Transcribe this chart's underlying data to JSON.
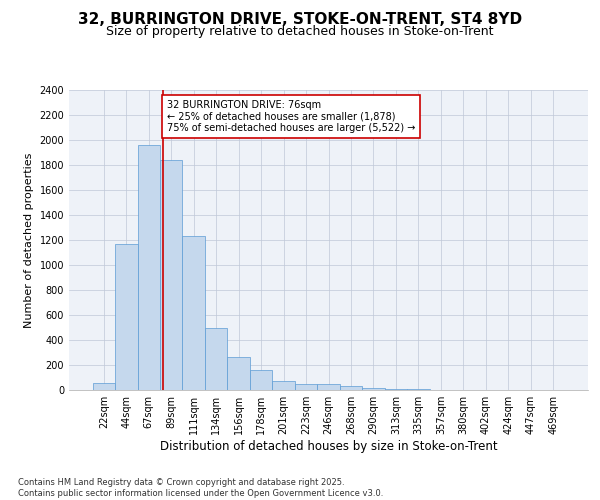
{
  "title_line1": "32, BURRINGTON DRIVE, STOKE-ON-TRENT, ST4 8YD",
  "title_line2": "Size of property relative to detached houses in Stoke-on-Trent",
  "xlabel": "Distribution of detached houses by size in Stoke-on-Trent",
  "ylabel": "Number of detached properties",
  "categories": [
    "22sqm",
    "44sqm",
    "67sqm",
    "89sqm",
    "111sqm",
    "134sqm",
    "156sqm",
    "178sqm",
    "201sqm",
    "223sqm",
    "246sqm",
    "268sqm",
    "290sqm",
    "313sqm",
    "335sqm",
    "357sqm",
    "380sqm",
    "402sqm",
    "424sqm",
    "447sqm",
    "469sqm"
  ],
  "values": [
    60,
    1170,
    1960,
    1840,
    1230,
    500,
    265,
    160,
    70,
    45,
    45,
    30,
    20,
    10,
    5,
    3,
    2,
    1,
    1,
    0,
    0
  ],
  "bar_color": "#c5d8ed",
  "bar_edge_color": "#5b9bd5",
  "grid_color": "#c0c8d8",
  "background_color": "#eef2f8",
  "property_line_bin_index": 2.64,
  "annotation_text": "32 BURRINGTON DRIVE: 76sqm\n← 25% of detached houses are smaller (1,878)\n75% of semi-detached houses are larger (5,522) →",
  "annotation_box_color": "#ffffff",
  "annotation_box_edge": "#cc0000",
  "vline_color": "#cc0000",
  "ylim": [
    0,
    2400
  ],
  "yticks": [
    0,
    200,
    400,
    600,
    800,
    1000,
    1200,
    1400,
    1600,
    1800,
    2000,
    2200,
    2400
  ],
  "footnote": "Contains HM Land Registry data © Crown copyright and database right 2025.\nContains public sector information licensed under the Open Government Licence v3.0.",
  "title_fontsize": 11,
  "subtitle_fontsize": 9,
  "xlabel_fontsize": 8.5,
  "ylabel_fontsize": 8,
  "tick_fontsize": 7,
  "annotation_fontsize": 7,
  "footnote_fontsize": 6
}
